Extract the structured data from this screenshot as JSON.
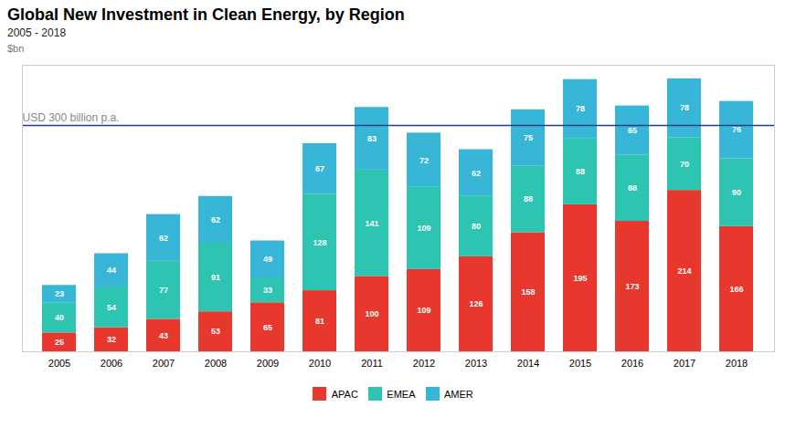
{
  "chart_data": {
    "type": "bar",
    "stacked": true,
    "title": "Global New Investment in Clean Energy, by Region",
    "subtitle": "2005 - 2018",
    "ylabel": "$bn",
    "categories": [
      "2005",
      "2006",
      "2007",
      "2008",
      "2009",
      "2010",
      "2011",
      "2012",
      "2013",
      "2014",
      "2015",
      "2016",
      "2017",
      "2018"
    ],
    "series": [
      {
        "name": "APAC",
        "color": "#e8372c",
        "values": [
          25,
          32,
          43,
          53,
          65,
          81,
          100,
          109,
          126,
          158,
          195,
          173,
          214,
          166
        ]
      },
      {
        "name": "EMEA",
        "color": "#2dc4b2",
        "values": [
          40,
          54,
          77,
          91,
          33,
          128,
          141,
          109,
          80,
          88,
          88,
          88,
          70,
          90
        ]
      },
      {
        "name": "AMER",
        "color": "#38b6d8",
        "values": [
          23,
          44,
          62,
          62,
          49,
          67,
          83,
          72,
          62,
          75,
          78,
          65,
          78,
          76
        ]
      }
    ],
    "ylim": [
      0,
      380
    ],
    "tick_labels": "x",
    "data_labels": true,
    "legend": "bottom",
    "hline": {
      "value": 300,
      "label": "USD 300 billion p.a.",
      "color": "#1f3c88"
    }
  }
}
